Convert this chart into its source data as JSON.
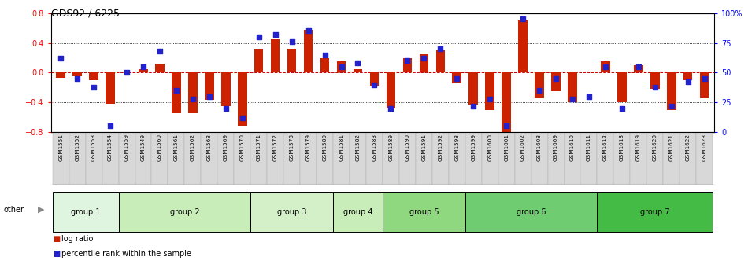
{
  "title": "GDS92 / 6225",
  "samples": [
    "GSM1551",
    "GSM1552",
    "GSM1553",
    "GSM1554",
    "GSM1559",
    "GSM1549",
    "GSM1560",
    "GSM1561",
    "GSM1562",
    "GSM1563",
    "GSM1569",
    "GSM1570",
    "GSM1571",
    "GSM1572",
    "GSM1573",
    "GSM1579",
    "GSM1580",
    "GSM1581",
    "GSM1582",
    "GSM1583",
    "GSM1589",
    "GSM1590",
    "GSM1591",
    "GSM1592",
    "GSM1593",
    "GSM1599",
    "GSM1600",
    "GSM1601",
    "GSM1602",
    "GSM1603",
    "GSM1609",
    "GSM1610",
    "GSM1611",
    "GSM1612",
    "GSM1613",
    "GSM1619",
    "GSM1620",
    "GSM1621",
    "GSM1622",
    "GSM1623"
  ],
  "log_ratio": [
    -0.07,
    -0.05,
    -0.1,
    -0.42,
    0.0,
    0.05,
    0.12,
    -0.55,
    -0.55,
    -0.37,
    -0.45,
    -0.72,
    0.32,
    0.45,
    0.32,
    0.58,
    0.2,
    0.15,
    0.05,
    -0.18,
    -0.48,
    0.2,
    0.25,
    0.3,
    -0.14,
    -0.44,
    -0.5,
    -0.8,
    0.7,
    -0.35,
    -0.25,
    -0.4,
    0.0,
    0.15,
    -0.4,
    0.1,
    -0.22,
    -0.5,
    -0.1,
    -0.35
  ],
  "percentile": [
    62,
    45,
    38,
    5,
    50,
    55,
    68,
    35,
    28,
    30,
    20,
    12,
    80,
    82,
    76,
    85,
    65,
    55,
    58,
    40,
    20,
    60,
    62,
    70,
    45,
    22,
    28,
    5,
    95,
    35,
    45,
    28,
    30,
    55,
    20,
    55,
    38,
    22,
    42,
    45
  ],
  "groups": [
    {
      "name": "group 1",
      "start": 0,
      "end": 4
    },
    {
      "name": "group 2",
      "start": 4,
      "end": 12
    },
    {
      "name": "group 3",
      "start": 12,
      "end": 17
    },
    {
      "name": "group 4",
      "start": 17,
      "end": 20
    },
    {
      "name": "group 5",
      "start": 20,
      "end": 25
    },
    {
      "name": "group 6",
      "start": 25,
      "end": 33
    },
    {
      "name": "group 7",
      "start": 33,
      "end": 40
    }
  ],
  "group_colors": [
    "#e0f5e0",
    "#c8edb8",
    "#d4f0c8",
    "#c8edb8",
    "#90d880",
    "#70cc70",
    "#44bb44"
  ],
  "bar_color": "#cc2200",
  "dot_color": "#2222cc",
  "ylim": [
    -0.8,
    0.8
  ],
  "yticks": [
    -0.8,
    -0.4,
    0.0,
    0.4,
    0.8
  ],
  "y2ticks_vals": [
    0,
    25,
    50,
    75,
    100
  ],
  "y2ticks_labels": [
    "0",
    "25",
    "50",
    "75",
    "100%"
  ],
  "xlabel_bg": "#e0e0e0",
  "other_arrow_color": "#888888"
}
